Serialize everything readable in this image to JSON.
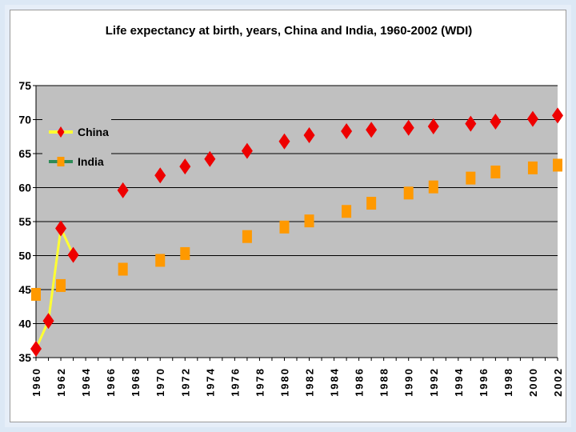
{
  "colors": {
    "plot_bg": "#c0c0c0",
    "china_marker": "#ee0000",
    "china_line": "#ffff33",
    "india_marker": "#ff9900",
    "india_line": "#2e8b57"
  },
  "chart_data": {
    "type": "line",
    "title": "Life expectancy at birth, years, China and India, 1960-2002 (WDI)",
    "xlabel": "",
    "ylabel": "",
    "ylim": [
      35,
      75
    ],
    "xlim": [
      1960,
      2002
    ],
    "yticks": [
      35,
      40,
      45,
      50,
      55,
      60,
      65,
      70,
      75
    ],
    "xticks": [
      1960,
      1962,
      1964,
      1966,
      1968,
      1970,
      1972,
      1974,
      1976,
      1978,
      1980,
      1982,
      1984,
      1986,
      1988,
      1990,
      1992,
      1994,
      1996,
      1998,
      2000,
      2002
    ],
    "grid": true,
    "legend": "top-left",
    "series": [
      {
        "name": "China",
        "marker": "diamond",
        "x": [
          1960,
          1961,
          1962,
          1963,
          1967,
          1970,
          1972,
          1974,
          1977,
          1980,
          1982,
          1985,
          1987,
          1990,
          1992,
          1995,
          1997,
          2000,
          2002
        ],
        "values": [
          36.3,
          40.4,
          54.0,
          50.1,
          59.6,
          61.8,
          63.1,
          64.2,
          65.4,
          66.8,
          67.7,
          68.3,
          68.5,
          68.8,
          69.0,
          69.4,
          69.7,
          70.1,
          70.6
        ],
        "connected_until_index": 3
      },
      {
        "name": "India",
        "marker": "square",
        "x": [
          1960,
          1962,
          1967,
          1970,
          1972,
          1977,
          1980,
          1982,
          1985,
          1987,
          1990,
          1992,
          1995,
          1997,
          2000,
          2002
        ],
        "values": [
          44.3,
          45.6,
          48.0,
          49.3,
          50.3,
          52.8,
          54.2,
          55.1,
          56.5,
          57.7,
          59.2,
          60.1,
          61.4,
          62.3,
          62.9,
          63.3
        ],
        "connected_until_index": 0
      }
    ]
  }
}
